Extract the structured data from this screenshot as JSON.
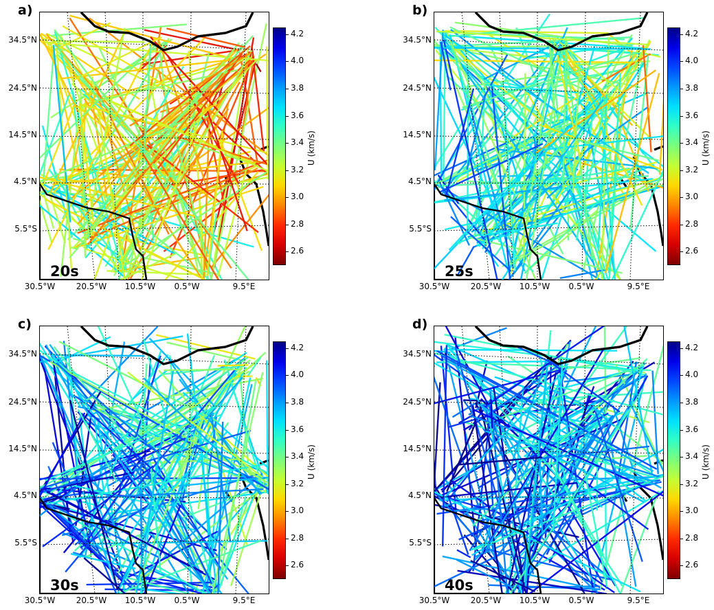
{
  "colorbar": {
    "label": "U (km/s)",
    "ticks": [
      "4.2",
      "4.0",
      "3.8",
      "3.6",
      "3.4",
      "3.2",
      "3.0",
      "2.8",
      "2.6"
    ],
    "range": [
      2.5,
      4.25
    ],
    "colormap": [
      "#7f0000",
      "#d40000",
      "#ff2b00",
      "#ff8600",
      "#ffd700",
      "#c4ff33",
      "#7dff7a",
      "#33ffc4",
      "#00e0ff",
      "#0099ff",
      "#0048ff",
      "#0000e8",
      "#00008a"
    ]
  },
  "axes": {
    "lat_labels": [
      "34.5°N",
      "24.5°N",
      "14.5°N",
      "4.5°N",
      "5.5°S"
    ],
    "lon_labels": [
      "30.5°W",
      "20.5°W",
      "10.5°W",
      "0.5°W",
      "9.5°E"
    ]
  },
  "panels": [
    {
      "letter": "a)",
      "period": "20s",
      "mean_velocity": 3.25
    },
    {
      "letter": "b)",
      "period": "25s",
      "mean_velocity": 3.55
    },
    {
      "letter": "c)",
      "period": "30s",
      "mean_velocity": 3.75
    },
    {
      "letter": "d)",
      "period": "40s",
      "mean_velocity": 3.9
    }
  ]
}
